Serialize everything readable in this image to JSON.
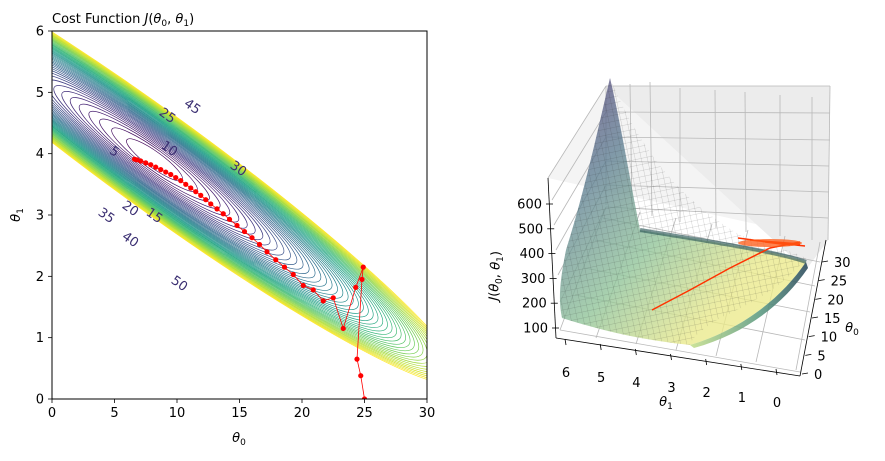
{
  "chart_data": [
    {
      "type": "contour",
      "title": "Cost Function J(θ0, θ1)",
      "xlabel": "θ0",
      "ylabel": "θ1",
      "xlim": [
        0,
        30
      ],
      "ylim": [
        0,
        6
      ],
      "xticks": [
        0,
        5,
        10,
        15,
        20,
        25,
        30
      ],
      "yticks": [
        0,
        1,
        2,
        3,
        4,
        5,
        6
      ],
      "grid": false,
      "colormap": "viridis",
      "contour_labels": [
        "5",
        "10",
        "15",
        "20",
        "25",
        "30",
        "35",
        "40",
        "45",
        "50"
      ],
      "descent_path": {
        "color": "#ff0000",
        "points": [
          [
            25.0,
            0.0
          ],
          [
            24.7,
            0.38
          ],
          [
            24.4,
            0.65
          ],
          [
            24.8,
            1.95
          ],
          [
            24.9,
            2.15
          ],
          [
            24.3,
            1.82
          ],
          [
            23.3,
            1.15
          ],
          [
            22.5,
            1.65
          ],
          [
            21.7,
            1.6
          ],
          [
            20.9,
            1.78
          ],
          [
            20.1,
            1.85
          ],
          [
            19.3,
            2.03
          ],
          [
            18.6,
            2.15
          ],
          [
            17.9,
            2.27
          ],
          [
            17.2,
            2.4
          ],
          [
            16.6,
            2.52
          ],
          [
            16.0,
            2.63
          ],
          [
            15.4,
            2.73
          ],
          [
            14.8,
            2.83
          ],
          [
            14.2,
            2.93
          ],
          [
            13.7,
            3.02
          ],
          [
            13.2,
            3.1
          ],
          [
            12.7,
            3.18
          ],
          [
            12.3,
            3.25
          ],
          [
            11.9,
            3.32
          ],
          [
            11.5,
            3.38
          ],
          [
            11.1,
            3.44
          ],
          [
            10.7,
            3.5
          ],
          [
            10.3,
            3.56
          ],
          [
            9.9,
            3.61
          ],
          [
            9.5,
            3.66
          ],
          [
            9.1,
            3.7
          ],
          [
            8.7,
            3.74
          ],
          [
            8.3,
            3.78
          ],
          [
            7.9,
            3.82
          ],
          [
            7.5,
            3.85
          ],
          [
            7.1,
            3.88
          ],
          [
            6.8,
            3.9
          ],
          [
            6.6,
            3.91
          ]
        ]
      }
    },
    {
      "type": "surface3d",
      "xlabel": "θ1",
      "ylabel": "θ0",
      "zlabel": "J(θ0, θ1)",
      "x_ticks": [
        6,
        5,
        4,
        3,
        2,
        1,
        0
      ],
      "y_ticks": [
        0,
        5,
        10,
        15,
        20,
        25,
        30
      ],
      "z_ticks": [
        100,
        200,
        300,
        400,
        500,
        600
      ],
      "colormap": "viridis",
      "descent_path_color": "#ff3300"
    }
  ]
}
